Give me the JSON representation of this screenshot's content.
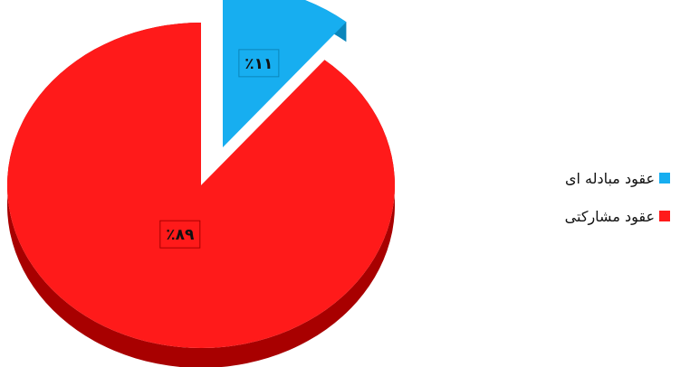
{
  "chart_data": {
    "type": "pie",
    "style": "3d-exploded",
    "categories": [
      "عقود مبادله ای",
      "عقود مشارکتی"
    ],
    "values": [
      11,
      89
    ],
    "data_labels": [
      "٪۱۱",
      "٪۸۹"
    ],
    "colors": [
      "#17aef0",
      "#ff1a1a"
    ],
    "legend_position": "right"
  },
  "legend": {
    "items": [
      {
        "label": "عقود مبادله ای",
        "color": "#17aef0"
      },
      {
        "label": "عقود مشارکتی",
        "color": "#ff1a1a"
      }
    ]
  }
}
